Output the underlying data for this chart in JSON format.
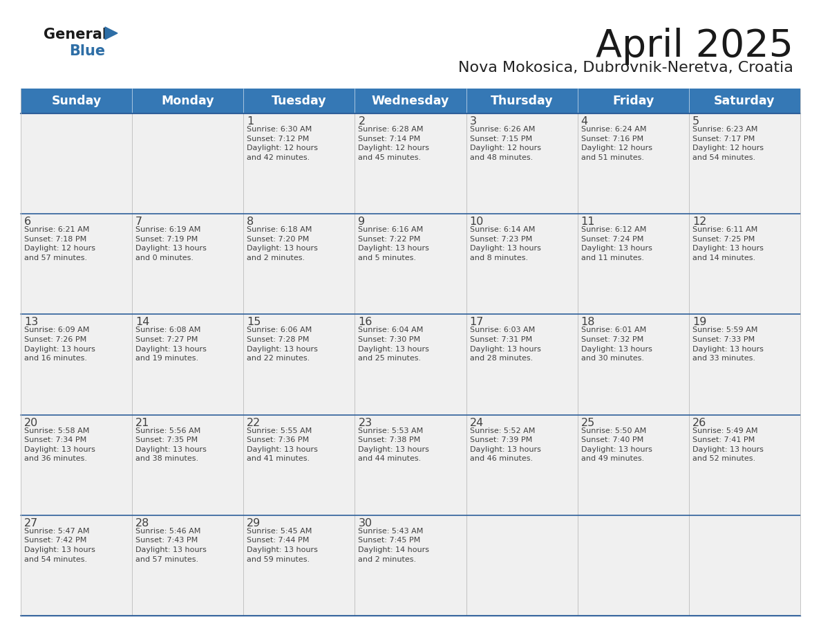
{
  "title": "April 2025",
  "subtitle": "Nova Mokosica, Dubrovnik-Neretva, Croatia",
  "days_of_week": [
    "Sunday",
    "Monday",
    "Tuesday",
    "Wednesday",
    "Thursday",
    "Friday",
    "Saturday"
  ],
  "header_bg": "#3578B5",
  "header_text": "#FFFFFF",
  "cell_bg": "#F0F0F0",
  "divider_color": "#2E5F9A",
  "grid_color": "#BBBBBB",
  "text_color": "#404040",
  "title_color": "#1A1A1A",
  "subtitle_color": "#222222",
  "logo_general_color": "#1A1A1A",
  "logo_blue_color": "#2E6EA6",
  "logo_triangle_color": "#2E6EA6",
  "calendar": [
    [
      {
        "day": null,
        "text": ""
      },
      {
        "day": null,
        "text": ""
      },
      {
        "day": 1,
        "text": "Sunrise: 6:30 AM\nSunset: 7:12 PM\nDaylight: 12 hours\nand 42 minutes."
      },
      {
        "day": 2,
        "text": "Sunrise: 6:28 AM\nSunset: 7:14 PM\nDaylight: 12 hours\nand 45 minutes."
      },
      {
        "day": 3,
        "text": "Sunrise: 6:26 AM\nSunset: 7:15 PM\nDaylight: 12 hours\nand 48 minutes."
      },
      {
        "day": 4,
        "text": "Sunrise: 6:24 AM\nSunset: 7:16 PM\nDaylight: 12 hours\nand 51 minutes."
      },
      {
        "day": 5,
        "text": "Sunrise: 6:23 AM\nSunset: 7:17 PM\nDaylight: 12 hours\nand 54 minutes."
      }
    ],
    [
      {
        "day": 6,
        "text": "Sunrise: 6:21 AM\nSunset: 7:18 PM\nDaylight: 12 hours\nand 57 minutes."
      },
      {
        "day": 7,
        "text": "Sunrise: 6:19 AM\nSunset: 7:19 PM\nDaylight: 13 hours\nand 0 minutes."
      },
      {
        "day": 8,
        "text": "Sunrise: 6:18 AM\nSunset: 7:20 PM\nDaylight: 13 hours\nand 2 minutes."
      },
      {
        "day": 9,
        "text": "Sunrise: 6:16 AM\nSunset: 7:22 PM\nDaylight: 13 hours\nand 5 minutes."
      },
      {
        "day": 10,
        "text": "Sunrise: 6:14 AM\nSunset: 7:23 PM\nDaylight: 13 hours\nand 8 minutes."
      },
      {
        "day": 11,
        "text": "Sunrise: 6:12 AM\nSunset: 7:24 PM\nDaylight: 13 hours\nand 11 minutes."
      },
      {
        "day": 12,
        "text": "Sunrise: 6:11 AM\nSunset: 7:25 PM\nDaylight: 13 hours\nand 14 minutes."
      }
    ],
    [
      {
        "day": 13,
        "text": "Sunrise: 6:09 AM\nSunset: 7:26 PM\nDaylight: 13 hours\nand 16 minutes."
      },
      {
        "day": 14,
        "text": "Sunrise: 6:08 AM\nSunset: 7:27 PM\nDaylight: 13 hours\nand 19 minutes."
      },
      {
        "day": 15,
        "text": "Sunrise: 6:06 AM\nSunset: 7:28 PM\nDaylight: 13 hours\nand 22 minutes."
      },
      {
        "day": 16,
        "text": "Sunrise: 6:04 AM\nSunset: 7:30 PM\nDaylight: 13 hours\nand 25 minutes."
      },
      {
        "day": 17,
        "text": "Sunrise: 6:03 AM\nSunset: 7:31 PM\nDaylight: 13 hours\nand 28 minutes."
      },
      {
        "day": 18,
        "text": "Sunrise: 6:01 AM\nSunset: 7:32 PM\nDaylight: 13 hours\nand 30 minutes."
      },
      {
        "day": 19,
        "text": "Sunrise: 5:59 AM\nSunset: 7:33 PM\nDaylight: 13 hours\nand 33 minutes."
      }
    ],
    [
      {
        "day": 20,
        "text": "Sunrise: 5:58 AM\nSunset: 7:34 PM\nDaylight: 13 hours\nand 36 minutes."
      },
      {
        "day": 21,
        "text": "Sunrise: 5:56 AM\nSunset: 7:35 PM\nDaylight: 13 hours\nand 38 minutes."
      },
      {
        "day": 22,
        "text": "Sunrise: 5:55 AM\nSunset: 7:36 PM\nDaylight: 13 hours\nand 41 minutes."
      },
      {
        "day": 23,
        "text": "Sunrise: 5:53 AM\nSunset: 7:38 PM\nDaylight: 13 hours\nand 44 minutes."
      },
      {
        "day": 24,
        "text": "Sunrise: 5:52 AM\nSunset: 7:39 PM\nDaylight: 13 hours\nand 46 minutes."
      },
      {
        "day": 25,
        "text": "Sunrise: 5:50 AM\nSunset: 7:40 PM\nDaylight: 13 hours\nand 49 minutes."
      },
      {
        "day": 26,
        "text": "Sunrise: 5:49 AM\nSunset: 7:41 PM\nDaylight: 13 hours\nand 52 minutes."
      }
    ],
    [
      {
        "day": 27,
        "text": "Sunrise: 5:47 AM\nSunset: 7:42 PM\nDaylight: 13 hours\nand 54 minutes."
      },
      {
        "day": 28,
        "text": "Sunrise: 5:46 AM\nSunset: 7:43 PM\nDaylight: 13 hours\nand 57 minutes."
      },
      {
        "day": 29,
        "text": "Sunrise: 5:45 AM\nSunset: 7:44 PM\nDaylight: 13 hours\nand 59 minutes."
      },
      {
        "day": 30,
        "text": "Sunrise: 5:43 AM\nSunset: 7:45 PM\nDaylight: 14 hours\nand 2 minutes."
      },
      {
        "day": null,
        "text": ""
      },
      {
        "day": null,
        "text": ""
      },
      {
        "day": null,
        "text": ""
      }
    ]
  ]
}
